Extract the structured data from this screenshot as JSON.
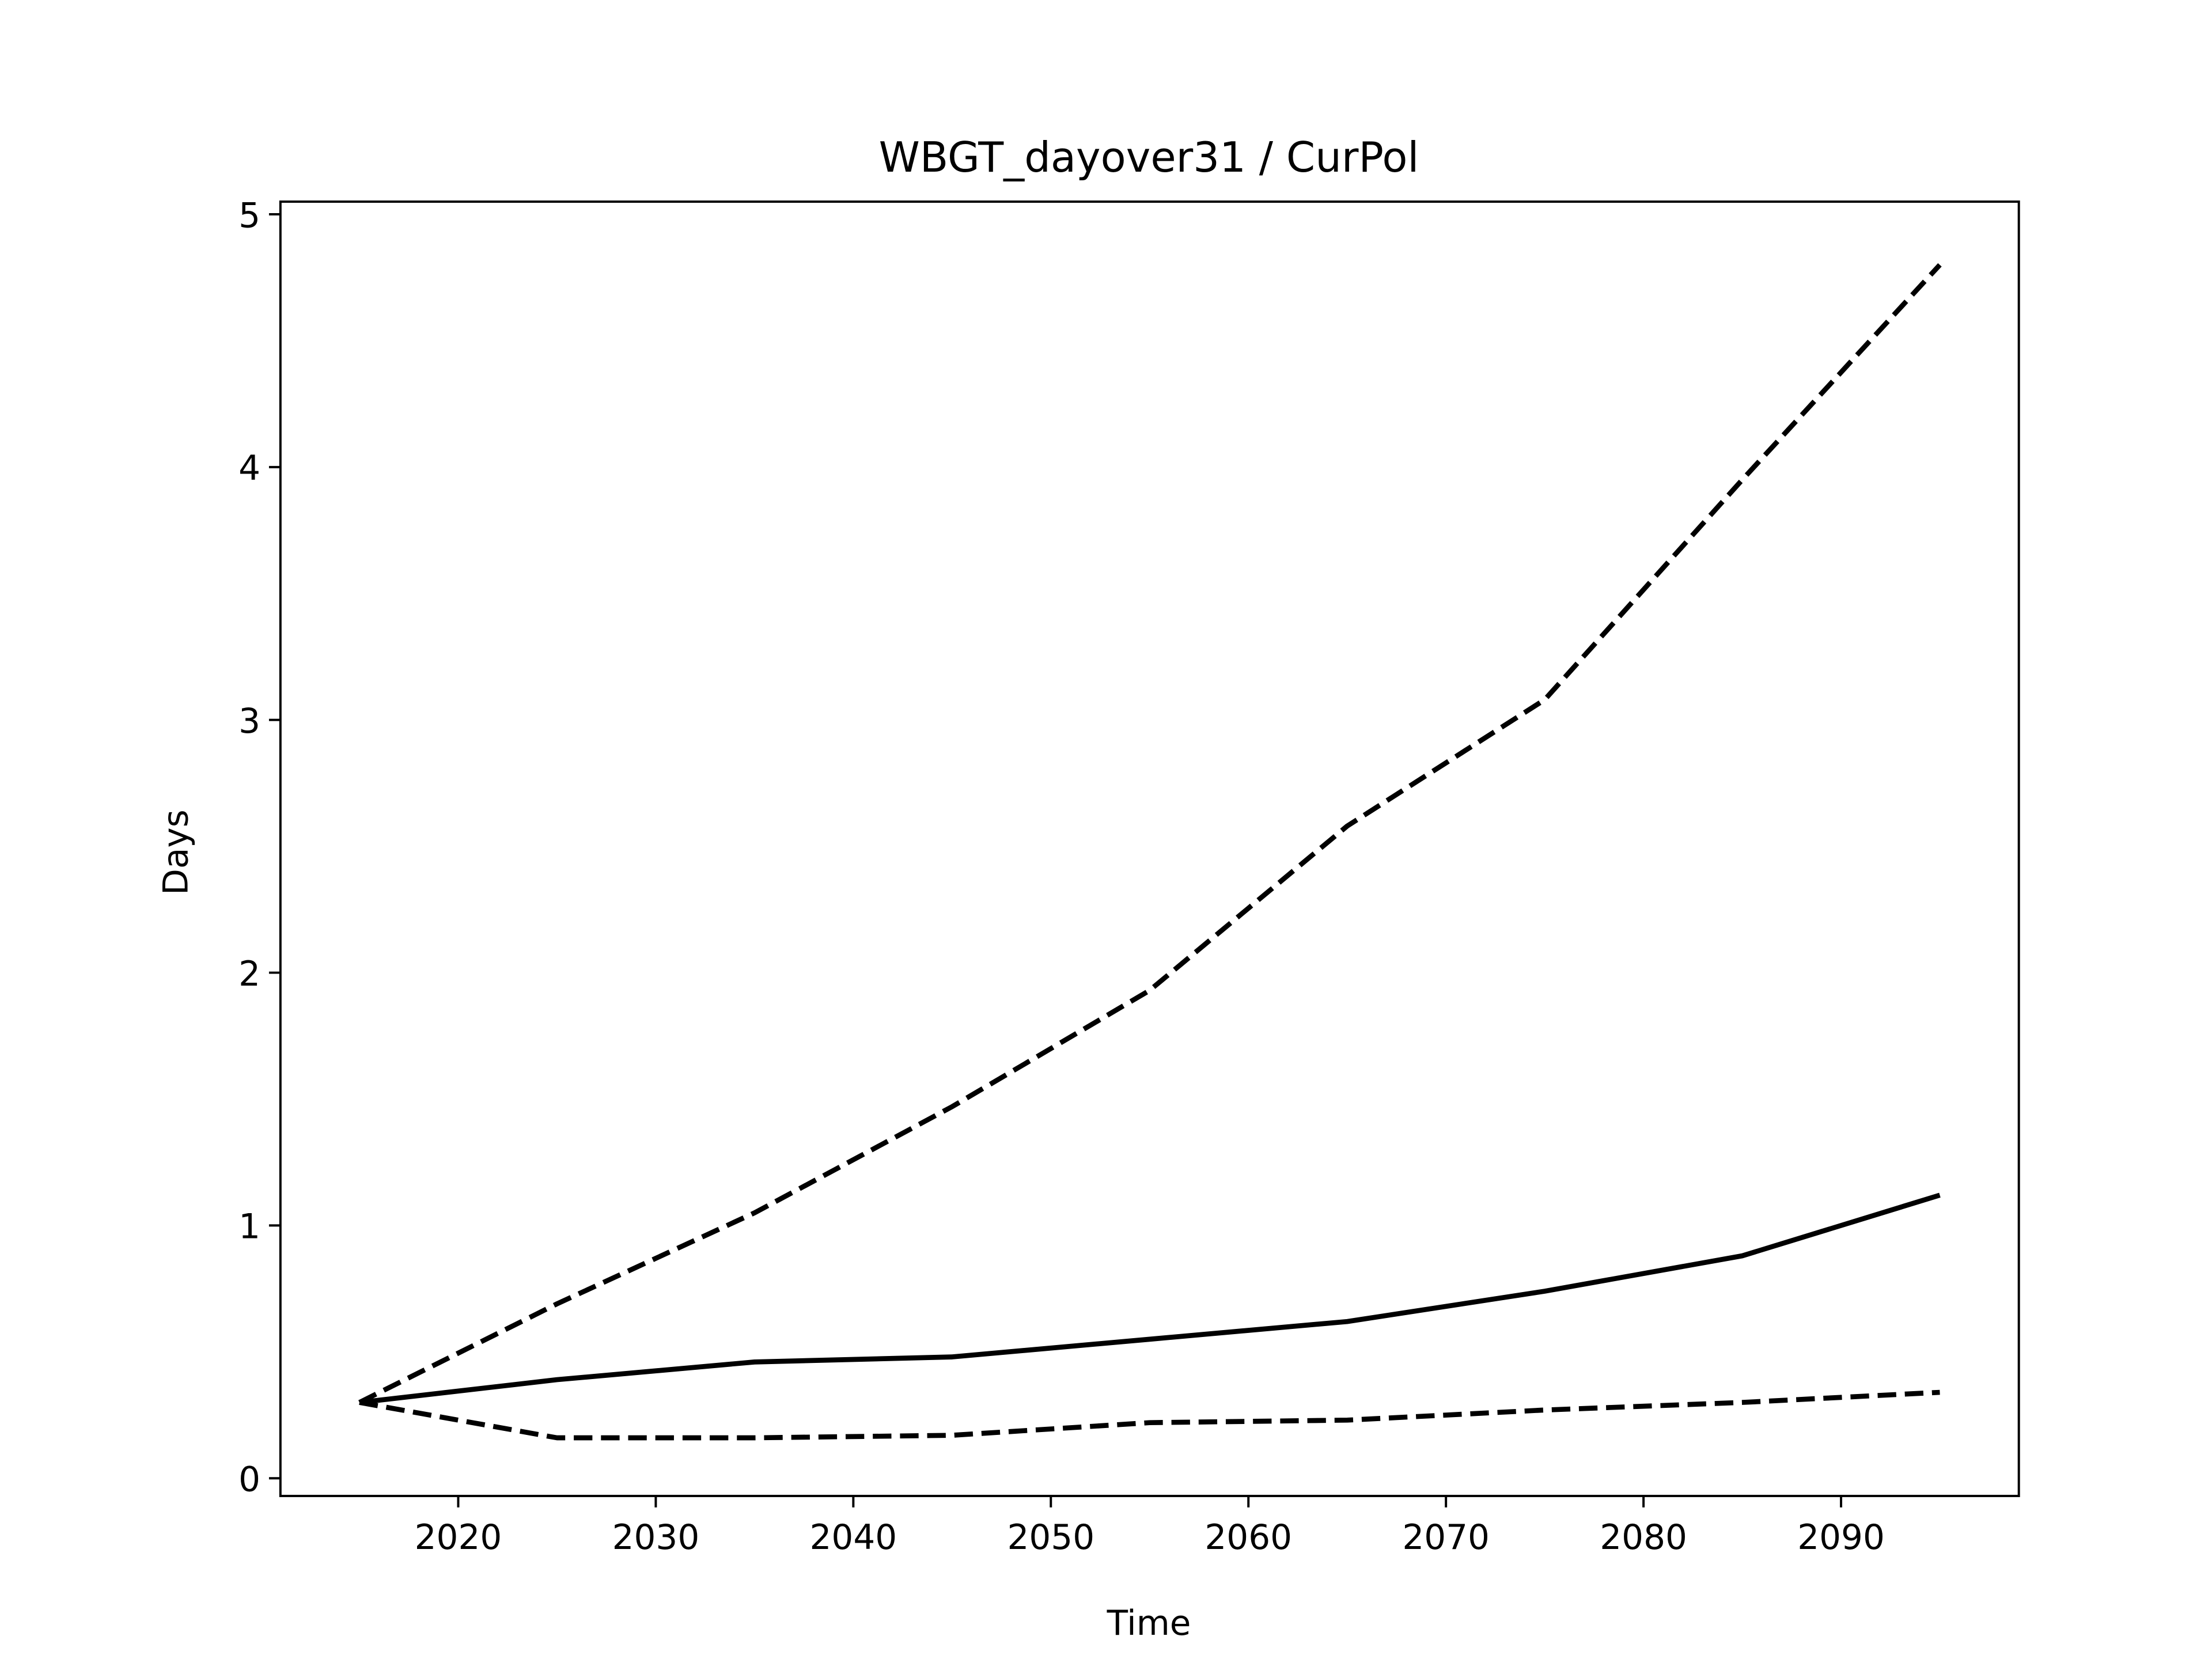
{
  "chart_data": {
    "type": "line",
    "title": "WBGT_dayover31 / CurPol",
    "x_label": "Time",
    "y_label": "Days",
    "x": [
      2015,
      2025,
      2035,
      2045,
      2055,
      2065,
      2075,
      2085,
      2095
    ],
    "series": [
      {
        "color": "#000000",
        "style": "dashed",
        "values": [
          0.3,
          0.69,
          1.05,
          1.47,
          1.93,
          2.58,
          3.08,
          3.95,
          4.8
        ]
      },
      {
        "color": "#000000",
        "style": "solid",
        "values": [
          0.3,
          0.39,
          0.46,
          0.48,
          0.55,
          0.62,
          0.74,
          0.88,
          1.12
        ]
      },
      {
        "color": "#000000",
        "style": "dashed",
        "values": [
          0.3,
          0.16,
          0.16,
          0.17,
          0.22,
          0.23,
          0.27,
          0.3,
          0.34
        ]
      }
    ],
    "xlim": [
      2011,
      2099
    ],
    "xticks": [
      2020,
      2030,
      2040,
      2050,
      2060,
      2070,
      2080,
      2090
    ],
    "ylim": [
      -0.07,
      5.05
    ],
    "yticks": [
      0,
      1,
      2,
      3,
      4,
      5
    ],
    "grid": false
  }
}
